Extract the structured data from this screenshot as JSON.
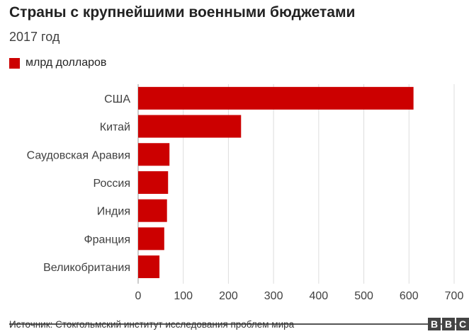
{
  "header": {
    "title": "Страны с крупнейшими военными бюджетами",
    "subtitle": "2017 год"
  },
  "footer": {
    "source": "Источник: Стокгольмский институт исследования проблем мира",
    "logo": [
      "B",
      "B",
      "C"
    ]
  },
  "colors": {
    "bar": "#cc0000",
    "grid": "#dddddd",
    "text": "#404040"
  },
  "chart_data": {
    "type": "bar",
    "orientation": "horizontal",
    "categories": [
      "США",
      "Китай",
      "Саудовская Аравия",
      "Россия",
      "Индия",
      "Франция",
      "Великобритания"
    ],
    "series": [
      {
        "name": "млрд долларов",
        "values": [
          610,
          228,
          69.4,
          66.3,
          63.9,
          57.8,
          47.2
        ]
      }
    ],
    "xlim": [
      0,
      700
    ],
    "xticks": [
      0,
      100,
      200,
      300,
      400,
      500,
      600,
      700
    ],
    "grid": true,
    "legend": "top-left"
  }
}
